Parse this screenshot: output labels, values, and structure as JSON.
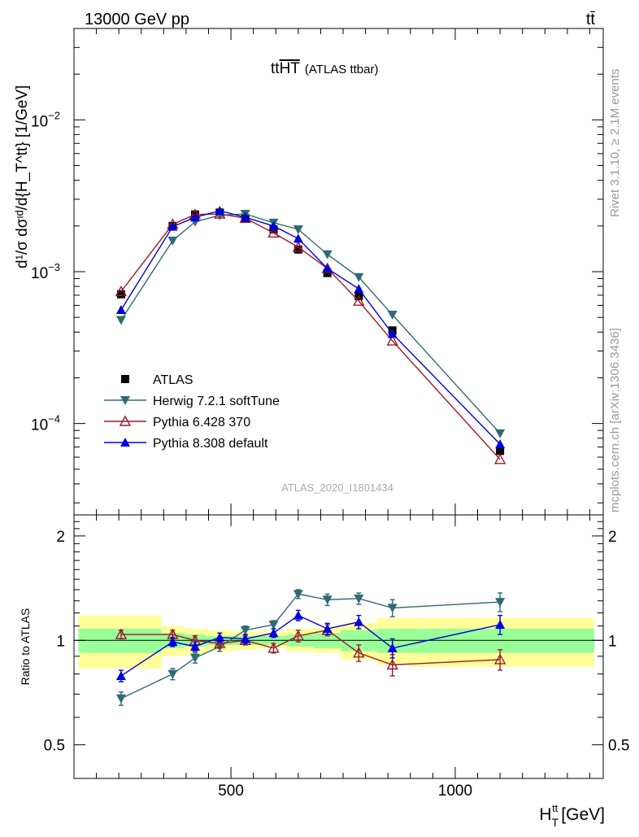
{
  "header": {
    "left": "13000 GeV pp",
    "right": "tt̄"
  },
  "side_labels": {
    "top": "Rivet 3.1.10, ≥ 2.1M events",
    "bottom": "mcplots.cern.ch [arXiv:1306.3436]"
  },
  "plot_title_main": "tt",
  "plot_title_overline": "HT",
  "plot_title_sub": "(ATLAS ttbar)",
  "watermark": "ATLAS_2020_I1801434",
  "colors": {
    "data": "#000000",
    "herwig": "#2e6b73",
    "pythia6": "#9b1b2a",
    "pythia8": "#0000dd",
    "band_inner": "#99ff99",
    "band_outer": "#ffff99"
  },
  "chart_data": [
    {
      "type": "scatter",
      "panel": "main",
      "yscale": "log",
      "ylabel": "d¹/σ dσᶦᵈ/d{H_T^tt} [1/GeV]",
      "ylabel_unit": "[1/GeV]",
      "xlim": [
        150,
        1330
      ],
      "ylim": [
        2.5e-05,
        0.04
      ],
      "y_ticks": [
        {
          "value": 0.0001,
          "base": "10",
          "exp": "−4"
        },
        {
          "value": 0.001,
          "base": "10",
          "exp": "−3"
        },
        {
          "value": 0.01,
          "base": "10",
          "exp": "−2"
        }
      ],
      "legend_placement": "left-center",
      "series": [
        {
          "name": "ATLAS",
          "key": "data",
          "marker": "square-filled",
          "x": [
            255,
            370,
            420,
            475,
            532,
            595,
            650,
            715,
            785,
            860,
            1100
          ],
          "y": [
            0.00071,
            0.002,
            0.00238,
            0.00245,
            0.00225,
            0.0019,
            0.0014,
            0.00098,
            0.00069,
            0.00041,
            6.6e-05
          ]
        },
        {
          "name": "Herwig 7.2.1 softTune",
          "key": "herwig",
          "marker": "triangle-down-filled",
          "x": [
            255,
            370,
            420,
            475,
            532,
            595,
            650,
            715,
            785,
            860,
            1100
          ],
          "y": [
            0.00048,
            0.0016,
            0.00213,
            0.00235,
            0.0024,
            0.0021,
            0.0019,
            0.0013,
            0.00092,
            0.00052,
            8.6e-05
          ]
        },
        {
          "name": "Pythia 6.428 370",
          "key": "pythia6",
          "marker": "triangle-up-open",
          "x": [
            255,
            370,
            420,
            475,
            532,
            595,
            650,
            715,
            785,
            860,
            1100
          ],
          "y": [
            0.00074,
            0.00205,
            0.00238,
            0.0024,
            0.00225,
            0.0018,
            0.00145,
            0.00105,
            0.00064,
            0.00035,
            5.8e-05
          ]
        },
        {
          "name": "Pythia 8.308 default",
          "key": "pythia8",
          "marker": "triangle-up-filled",
          "x": [
            255,
            370,
            420,
            475,
            532,
            595,
            650,
            715,
            785,
            860,
            1100
          ],
          "y": [
            0.00056,
            0.00198,
            0.00228,
            0.00252,
            0.00228,
            0.002,
            0.00165,
            0.00105,
            0.00077,
            0.00039,
            7.3e-05
          ]
        }
      ]
    },
    {
      "type": "scatter",
      "panel": "ratio",
      "ylabel": "Ratio to ATLAS",
      "xlabel": "H_T^tt [GeV]",
      "xlabel_main": "H",
      "xlabel_sub": "T",
      "xlabel_sup": "tt",
      "xlabel_unit": "[GeV]",
      "xlim": [
        150,
        1330
      ],
      "ylim": [
        0.4,
        2.3
      ],
      "x_ticks": [
        500,
        1000
      ],
      "y_ticks": [
        0.5,
        1,
        2
      ],
      "reference_line": 1,
      "bands": {
        "edges": [
          160,
          345,
          395,
          445,
          505,
          560,
          625,
          685,
          745,
          825,
          895,
          1310
        ],
        "inner_low": [
          0.92,
          0.95,
          0.96,
          0.97,
          0.97,
          0.97,
          0.96,
          0.95,
          0.93,
          0.92,
          0.92
        ],
        "inner_high": [
          1.08,
          1.05,
          1.04,
          1.03,
          1.03,
          1.03,
          1.04,
          1.05,
          1.07,
          1.08,
          1.08
        ],
        "outer_low": [
          0.83,
          0.9,
          0.91,
          0.93,
          0.94,
          0.95,
          0.93,
          0.92,
          0.88,
          0.85,
          0.84
        ],
        "outer_high": [
          1.18,
          1.1,
          1.08,
          1.07,
          1.06,
          1.06,
          1.08,
          1.09,
          1.12,
          1.16,
          1.16
        ]
      },
      "series": [
        {
          "name": "Herwig 7.2.1 softTune",
          "key": "herwig",
          "marker": "triangle-down-filled",
          "x": [
            255,
            370,
            420,
            475,
            532,
            595,
            650,
            715,
            785,
            860,
            1100
          ],
          "y": [
            0.68,
            0.8,
            0.89,
            0.96,
            1.07,
            1.11,
            1.36,
            1.31,
            1.32,
            1.24,
            1.29
          ],
          "err": [
            0.03,
            0.03,
            0.03,
            0.03,
            0.03,
            0.03,
            0.04,
            0.05,
            0.05,
            0.07,
            0.08
          ]
        },
        {
          "name": "Pythia 6.428 370",
          "key": "pythia6",
          "marker": "triangle-up-open",
          "x": [
            255,
            370,
            420,
            475,
            532,
            595,
            650,
            715,
            785,
            860,
            1100
          ],
          "y": [
            1.04,
            1.04,
            1.0,
            0.98,
            1.0,
            0.95,
            1.03,
            1.07,
            0.92,
            0.85,
            0.88
          ],
          "err": [
            0.03,
            0.03,
            0.03,
            0.03,
            0.03,
            0.03,
            0.04,
            0.04,
            0.05,
            0.06,
            0.06
          ]
        },
        {
          "name": "Pythia 8.308 default",
          "key": "pythia8",
          "marker": "triangle-up-filled",
          "x": [
            255,
            370,
            420,
            475,
            532,
            595,
            650,
            715,
            785,
            860,
            1100
          ],
          "y": [
            0.79,
            0.99,
            0.96,
            1.02,
            1.01,
            1.05,
            1.18,
            1.08,
            1.13,
            0.95,
            1.11
          ],
          "err": [
            0.03,
            0.03,
            0.03,
            0.03,
            0.03,
            0.03,
            0.04,
            0.04,
            0.05,
            0.06,
            0.07
          ]
        }
      ]
    }
  ]
}
